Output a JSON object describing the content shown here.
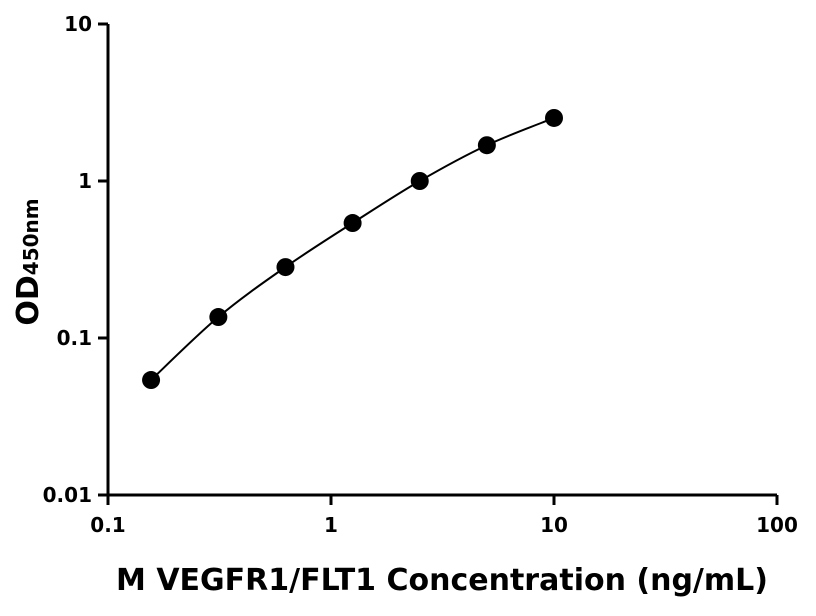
{
  "chart_data": {
    "type": "scatter",
    "xlabel": "M VEGFR1/FLT1 Concentration (ng/mL)",
    "ylabel": "OD",
    "ylabel_subscript": "450nm",
    "x": [
      0.156,
      0.3125,
      0.625,
      1.25,
      2.5,
      5,
      10
    ],
    "series": [
      {
        "color": "#000000",
        "values": [
          0.054,
          0.136,
          0.283,
          0.54,
          1.0,
          1.69,
          2.52
        ]
      }
    ],
    "xscale": "log",
    "yscale": "log",
    "xlim": [
      0.1,
      100
    ],
    "ylim": [
      0.01,
      10
    ],
    "xticks": [
      0.1,
      1,
      10,
      100
    ],
    "yticks": [
      0.01,
      0.1,
      1,
      10
    ],
    "fit_curve": true
  }
}
